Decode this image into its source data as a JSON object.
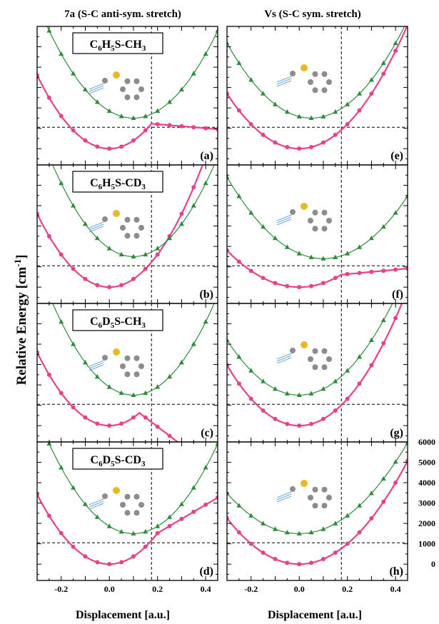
{
  "figure": {
    "column_titles": [
      "7a (S-C anti-sym. stretch)",
      "Vs (S-C sym. stretch)"
    ],
    "y_axis_title": "Relative Energy [cm",
    "y_axis_title_sup": "-1",
    "y_axis_title_end": "]",
    "x_axis_title": "Displacement [a.u.]",
    "colors": {
      "pink": "#e8418a",
      "green": "#2e8b3a",
      "frame": "#000000"
    }
  },
  "chart_data": [
    {
      "id": "a",
      "type": "line",
      "panel_label": "(a)",
      "molecule": {
        "p1": "C",
        "s1": "6",
        "p2": "H",
        "s2": "5",
        "p3": "S-CH",
        "s3": "3"
      },
      "xlim": [
        -0.3,
        0.45
      ],
      "ylim": [
        -800,
        6000
      ],
      "x_ticks": [
        -0.2,
        0.0,
        0.2,
        0.4
      ],
      "reference_x": 0.175,
      "reference_y": 1050,
      "series": [
        {
          "color": "pink",
          "marker": "circle",
          "k": 40000,
          "x0": 0.0,
          "y0": 0,
          "switch_x": 0.175,
          "tail_slope": -1000
        },
        {
          "color": "green",
          "marker": "triangle",
          "k": 35000,
          "x0": 0.1,
          "y0": 1500
        }
      ]
    },
    {
      "id": "e",
      "type": "line",
      "panel_label": "(e)",
      "molecule": null,
      "xlim": [
        -0.3,
        0.45
      ],
      "ylim": [
        -800,
        6000
      ],
      "x_ticks": [
        -0.2,
        0.0,
        0.2,
        0.4
      ],
      "reference_x": 0.175,
      "reference_y": 1050,
      "series": [
        {
          "color": "pink",
          "marker": "circle",
          "k": 30000,
          "x0": 0.0,
          "y0": 0
        },
        {
          "color": "green",
          "marker": "triangle",
          "k": 30000,
          "x0": 0.05,
          "y0": 1500
        }
      ]
    },
    {
      "id": "b",
      "type": "line",
      "panel_label": "(b)",
      "molecule": {
        "p1": "C",
        "s1": "6",
        "p2": "H",
        "s2": "5",
        "p3": "S-CD",
        "s3": "3"
      },
      "xlim": [
        -0.3,
        0.45
      ],
      "ylim": [
        -800,
        6000
      ],
      "x_ticks": [
        -0.2,
        0.0,
        0.2,
        0.4
      ],
      "reference_x": 0.175,
      "reference_y": 1050,
      "series": [
        {
          "color": "pink",
          "marker": "circle",
          "k": 40000,
          "x0": 0.0,
          "y0": 0
        },
        {
          "color": "green",
          "marker": "triangle",
          "k": 40000,
          "x0": 0.1,
          "y0": 1500
        }
      ]
    },
    {
      "id": "f",
      "type": "line",
      "panel_label": "(f)",
      "molecule": null,
      "xlim": [
        -0.3,
        0.45
      ],
      "ylim": [
        -800,
        6000
      ],
      "x_ticks": [
        -0.2,
        0.0,
        0.2,
        0.4
      ],
      "reference_x": 0.175,
      "reference_y": 1050,
      "series": [
        {
          "color": "pink",
          "marker": "circle",
          "k": 20000,
          "x0": 0.0,
          "y0": 0,
          "switch_x": 0.175,
          "tail_slope": 1100
        },
        {
          "color": "green",
          "marker": "triangle",
          "k": 25000,
          "x0": 0.1,
          "y0": 1400
        }
      ]
    },
    {
      "id": "c",
      "type": "line",
      "panel_label": "(c)",
      "molecule": {
        "p1": "C",
        "s1": "6",
        "p2": "D",
        "s2": "5",
        "p3": "S-CH",
        "s3": "3"
      },
      "xlim": [
        -0.3,
        0.45
      ],
      "ylim": [
        -800,
        6000
      ],
      "x_ticks": [
        -0.2,
        0.0,
        0.2,
        0.4
      ],
      "reference_x": 0.175,
      "reference_y": 1050,
      "series": [
        {
          "color": "pink",
          "marker": "circle",
          "k": 40000,
          "x0": 0.0,
          "y0": 0,
          "switch_x": 0.125,
          "tail_slope": -9000
        },
        {
          "color": "green",
          "marker": "triangle",
          "k": 40000,
          "x0": 0.1,
          "y0": 1500
        }
      ]
    },
    {
      "id": "g",
      "type": "line",
      "panel_label": "(g)",
      "molecule": null,
      "xlim": [
        -0.3,
        0.45
      ],
      "ylim": [
        -800,
        6000
      ],
      "x_ticks": [
        -0.2,
        0.0,
        0.2,
        0.4
      ],
      "reference_x": 0.175,
      "reference_y": 1050,
      "series": [
        {
          "color": "pink",
          "marker": "circle",
          "k": 33000,
          "x0": 0.0,
          "y0": 0
        },
        {
          "color": "green",
          "marker": "triangle",
          "k": 30000,
          "x0": 0.0,
          "y0": 1500
        }
      ]
    },
    {
      "id": "d",
      "type": "line",
      "panel_label": "(d)",
      "molecule": {
        "p1": "C",
        "s1": "6",
        "p2": "D",
        "s2": "5",
        "p3": "S-CD",
        "s3": "3"
      },
      "xlim": [
        -0.3,
        0.45
      ],
      "ylim": [
        -800,
        6000
      ],
      "x_ticks": [
        -0.2,
        0.0,
        0.2,
        0.4
      ],
      "reference_x": 0.175,
      "reference_y": 1050,
      "series": [
        {
          "color": "pink",
          "marker": "circle",
          "k": 38000,
          "x0": 0.0,
          "y0": 0,
          "switch_x": 0.2,
          "tail_slope": 7000
        },
        {
          "color": "green",
          "marker": "triangle",
          "k": 36000,
          "x0": 0.1,
          "y0": 1500
        }
      ]
    },
    {
      "id": "h",
      "type": "line",
      "panel_label": "(h)",
      "molecule": null,
      "xlim": [
        -0.3,
        0.45
      ],
      "ylim": [
        -800,
        6000
      ],
      "x_ticks": [
        -0.2,
        0.0,
        0.2,
        0.4
      ],
      "reference_x": 0.175,
      "reference_y": 1050,
      "y_ticks": [
        0,
        1000,
        2000,
        3000,
        4000,
        5000,
        6000
      ],
      "series": [
        {
          "color": "pink",
          "marker": "circle",
          "k": 25000,
          "x0": 0.0,
          "y0": 0
        },
        {
          "color": "green",
          "marker": "triangle",
          "k": 22000,
          "x0": 0.0,
          "y0": 1500
        }
      ]
    }
  ]
}
